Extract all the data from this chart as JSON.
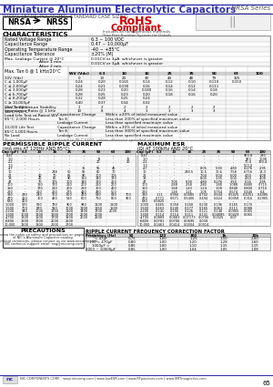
{
  "title": "Miniature Aluminum Electrolytic Capacitors",
  "series": "NRSA Series",
  "bg_color": "#ffffff",
  "subtitle": "RADIAL LEADS, POLARIZED, STANDARD CASE SIZING",
  "rohs_line1": "RoHS",
  "rohs_line2": "Compliant",
  "rohs_sub": "Includes all homogeneous materials",
  "rohs_note": "*See Part Number System for Details",
  "nrsa_label": "NRSA",
  "nrss_label": "NRSS",
  "nrsa_sub": "Industry standard",
  "nrss_sub": "Insulated sleeve",
  "char_title": "CHARACTERISTICS",
  "char_data": [
    [
      "Rated Voltage Range",
      "6.3 ~ 100 VDC"
    ],
    [
      "Capacitance Range",
      "0.47 ~ 10,000μF"
    ],
    [
      "Operating Temperature Range",
      "-40 ~ +85°C"
    ],
    [
      "Capacitance Tolerance",
      "±20% (M)"
    ],
    [
      "Max. Leakage Current @ 20°C",
      "After 1 min.",
      "0.01CV or 3μA  whichever is greater"
    ],
    [
      "",
      "After 2 min.",
      "0.01CV or 3μA  whichever is greater"
    ]
  ],
  "tan_label": "Max. Tan δ @ 1 kHz/20°C",
  "tan_headers": [
    "WV (Vdc)",
    "6.3",
    "10",
    "16",
    "25",
    "35",
    "50",
    "63",
    "100"
  ],
  "tan_data": [
    [
      "10V (Vdc)",
      "0",
      "13",
      "20",
      "30",
      "44",
      "48",
      "79",
      "325"
    ],
    [
      "C ≤ 1,000μF",
      "0.24",
      "0.20",
      "0.165",
      "0.14",
      "0.12",
      "0.10",
      "0.110",
      "0.150"
    ],
    [
      "C ≤ 2,000μF",
      "0.24",
      "0.21",
      "0.190",
      "0.16",
      "0.14",
      "0.12",
      "0.111",
      ""
    ],
    [
      "C ≤ 3,000μF",
      "0.28",
      "0.23",
      "0.20",
      "0.180",
      "0.16",
      "0.14",
      "0.18",
      ""
    ],
    [
      "C ≤ 6,700μF",
      "0.28",
      "0.25",
      "0.23",
      "0.20",
      "0.18",
      "0.16",
      "0.20",
      ""
    ],
    [
      "C ≤ 8,200μF",
      "0.32",
      "0.28",
      "0.25",
      "0.24",
      "",
      "",
      "",
      ""
    ],
    [
      "C ≥ 10,000μF",
      "0.40",
      "0.37",
      "0.34",
      "0.32",
      "",
      "",
      "",
      ""
    ]
  ],
  "imp_label": "Low Temperature Stability\nImpedance Ratio @ 1 kHz",
  "imp_headers": [
    "-25°C/+20°C",
    "-40°C/+20°C"
  ],
  "imp_data": [
    [
      "-25°C/+20°C",
      "2",
      "2",
      "2",
      "2",
      "2",
      "2",
      "2",
      ""
    ],
    [
      "-40°C/+20°C",
      "10",
      "8",
      "4",
      "3",
      "3",
      "3",
      "3",
      ""
    ]
  ],
  "load_label": "Load Life Test at Rated WV\n85°C 2,000 Hours",
  "load_data": [
    [
      "Capacitance Change",
      "Within ±20% of initial measured value"
    ],
    [
      "Tan δ",
      "Less than 200% of specified maximum value"
    ],
    [
      "Leakage Current",
      "Less than specified maximum value"
    ]
  ],
  "shelf_label": "10,000 Life Test\n85°C 1,000 Hours\nNo Load",
  "shelf_data": [
    [
      "Capacitance Change",
      "Within ±30% of initial measured value"
    ],
    [
      "Tan δ",
      "Less than 300% of specified maximum value"
    ],
    [
      "Leakage Current",
      "Less than specified maximum value"
    ]
  ],
  "note": "Note: Capacitance value conforms to JIS C 5101, unless otherwise specified sizes.",
  "prc_title": "PERMISSIBLE RIPPLE CURRENT",
  "prc_subtitle": "(mA rms AT 120Hz AND 85°C)",
  "esr_title": "MAXIMUM ESR",
  "esr_subtitle": "(Ω) AT 100kHz AND 20°C",
  "table_headers": [
    "Cap (μF)",
    "6.3",
    "10",
    "16",
    "25",
    "35",
    "50",
    "63",
    "100"
  ],
  "prc_data": [
    [
      "0.47",
      "-",
      "-",
      "-",
      "-",
      "-",
      "-",
      "-",
      "-"
    ],
    [
      "1.0",
      "-",
      "-",
      "-",
      "-",
      "-",
      "12",
      "-",
      "35"
    ],
    [
      "2.2",
      "-",
      "-",
      "-",
      "-",
      "-",
      "20",
      "-",
      "20"
    ],
    [
      "3.3",
      "-",
      "-",
      "-",
      "-",
      "-",
      "-",
      "-",
      "-"
    ],
    [
      "4.7",
      "-",
      "-",
      "-",
      "-",
      "35",
      "55",
      "45",
      "-"
    ],
    [
      "10",
      "-",
      "-",
      "248",
      "50",
      "55",
      "60",
      "70",
      ""
    ],
    [
      "22",
      "-",
      "40",
      "70",
      "85",
      "90",
      "100",
      "105",
      ""
    ],
    [
      "33",
      "-",
      "40",
      "60",
      "90",
      "110",
      "140",
      "170",
      ""
    ],
    [
      "47",
      "-",
      "70",
      "175",
      "100",
      "140",
      "170",
      "200",
      ""
    ],
    [
      "100",
      "-",
      "130",
      "170",
      "210",
      "200",
      "210",
      "200",
      ""
    ],
    [
      "150",
      "-",
      "170",
      "210",
      "200",
      "280",
      "300",
      "400",
      ""
    ],
    [
      "220",
      "-",
      "210",
      "260",
      "275",
      "420",
      "490",
      "500",
      ""
    ],
    [
      "330",
      "240",
      "240",
      "300",
      "600",
      "470",
      "540",
      "580",
      "700"
    ],
    [
      "470",
      "250",
      "300",
      "460",
      "510",
      "600",
      "710",
      "800",
      "900"
    ],
    [
      "680",
      "400",
      "",
      "",
      "",
      "",
      "",
      "",
      ""
    ],
    [
      "1,000",
      "570",
      "580",
      "780",
      "900",
      "980",
      "1100",
      "1300",
      ""
    ],
    [
      "1,500",
      "700",
      "870",
      "910",
      "1000",
      "1200",
      "1350",
      "1500",
      ""
    ],
    [
      "2,200",
      "940",
      "1000",
      "1250",
      "1300",
      "1400",
      "1700",
      "2000",
      ""
    ],
    [
      "3,300",
      "1000",
      "1200",
      "1600",
      "1700",
      "2000",
      "2000",
      "",
      ""
    ],
    [
      "4,700",
      "1300",
      "1500",
      "1700",
      "1900",
      "2000",
      "2500",
      "",
      ""
    ],
    [
      "6,800",
      "1600",
      "1700",
      "2000",
      "2500",
      "",
      "",
      "",
      ""
    ],
    [
      "10,000",
      "1900",
      "1300",
      "2200",
      "2700",
      "",
      "",
      "",
      ""
    ]
  ],
  "esr_data": [
    [
      "0.47",
      "-",
      "-",
      "-",
      "-",
      "-",
      "-",
      "900.8",
      "280"
    ],
    [
      "1.0",
      "-",
      "-",
      "-",
      "-",
      "-",
      "-",
      "900",
      "1038"
    ],
    [
      "2.2",
      "-",
      "-",
      "-",
      "-",
      "-",
      "-",
      "70.4",
      "160.4"
    ],
    [
      "3.3",
      "-",
      "-",
      "-",
      "-",
      "-",
      "-",
      "500.0",
      "-"
    ],
    [
      "4.7",
      "-",
      "-",
      "-",
      "8.05",
      "5.90",
      "4.80",
      "0.276",
      "2.95"
    ],
    [
      "10",
      "-",
      "-",
      "246.5",
      "10.5",
      "10.6",
      "7.58",
      "6.716",
      "13.3"
    ],
    [
      "22",
      "-",
      "-",
      "-",
      "7.04",
      "5.04",
      "5.00",
      "4.50",
      "4.08"
    ],
    [
      "33",
      "-",
      "-",
      "-",
      "8.00",
      "3.35",
      "5.00",
      "4.50",
      "4.08"
    ],
    [
      "47",
      "-",
      "7.05",
      "5.90",
      "4.80",
      "0.276",
      "3.50",
      "0.16",
      "2.95"
    ],
    [
      "100",
      "-",
      "2.88",
      "2.58",
      "2.80",
      "1.88",
      "1.088",
      "0.880",
      "0.715"
    ],
    [
      "150",
      "-",
      "1.68",
      "1.43",
      "1.24",
      "1.08",
      "0.848",
      "0.800",
      "0.710"
    ],
    [
      "220",
      "-",
      "1.46",
      "1.21",
      "1.05",
      "0.754",
      "0.574",
      "0.440",
      "0.4"
    ],
    [
      "330",
      "1.11",
      "0.956",
      "0.0085",
      "0.702",
      "0.504",
      "0.5025",
      "0.4251",
      "0.4085"
    ],
    [
      "470",
      "0.771",
      "0.671",
      "0.5406",
      "0.494",
      "0.424",
      "0.0358",
      "0.316",
      "0.2905"
    ],
    [
      "680",
      "0.5825",
      "-",
      "-",
      "-",
      "-",
      "-",
      "-",
      "-"
    ],
    [
      "1,000",
      "0.465",
      "0.358",
      "0.268",
      "0.230",
      "0.196",
      "0.165",
      "0.170",
      ""
    ],
    [
      "1,500",
      "0.263",
      "0.240",
      "0.177",
      "0.165",
      "0.063",
      "0.111",
      "0.088",
      ""
    ],
    [
      "2,200",
      "0.141",
      "0.156",
      "0.126",
      "0.121",
      "0.148",
      "0.0905",
      "0.065",
      ""
    ],
    [
      "3,300",
      "0.114",
      "0.114",
      "0.111",
      "0.131",
      "0.04085",
      "0.0429",
      "0.065",
      ""
    ],
    [
      "4,700",
      "0.0889",
      "0.0883",
      "0.07173",
      "0.0706",
      "0.0325",
      "0.07",
      "",
      ""
    ],
    [
      "6,800",
      "0.0781",
      "0.0706",
      "0.0695",
      "0.039",
      "",
      "",
      "",
      ""
    ],
    [
      "10,000",
      "0.0463",
      "0.0414",
      "0.0004",
      "0.0014",
      "",
      "",
      "",
      ""
    ]
  ],
  "prec_title": "PRECAUTIONS",
  "prec_body": "Please review the notes on safety and precautions on pages T50 to 53\nof NIC's Aluminum Capacitor catalog.\nFor technical comments, please contact us via www.niccomp.com\nNIC technical support email: eng@niccomp.com",
  "freq_title": "RIPPLE CURRENT FREQUENCY CORRECTION FACTOR",
  "freq_headers": [
    "Frequency (Hz)",
    "50",
    "120",
    "300",
    "1k",
    "10k"
  ],
  "freq_data": [
    [
      "< 47μF",
      "0.75",
      "1.00",
      "1.25",
      "1.50",
      "2.00"
    ],
    [
      "100 < 470μF",
      "0.80",
      "1.00",
      "1.20",
      "1.28",
      "1.60"
    ],
    [
      "1000μF <",
      "0.85",
      "1.00",
      "1.10",
      "1.15",
      "1.15"
    ],
    [
      "2000 ~ 10000μF",
      "0.85",
      "1.00",
      "1.04",
      "1.05",
      "1.08"
    ]
  ],
  "footer": "NIC COMPONENTS CORP.   www.niccomp.com | www.lowESR.com | www.RFpassives.com | www.SMTmagnetics.com",
  "page_num": "65",
  "title_color": "#3333aa",
  "header_bg": "#d0d0d0",
  "row_bg1": "#f5f5f5",
  "row_bg2": "#ffffff",
  "border_color": "#888888",
  "bold_border": "#444444"
}
